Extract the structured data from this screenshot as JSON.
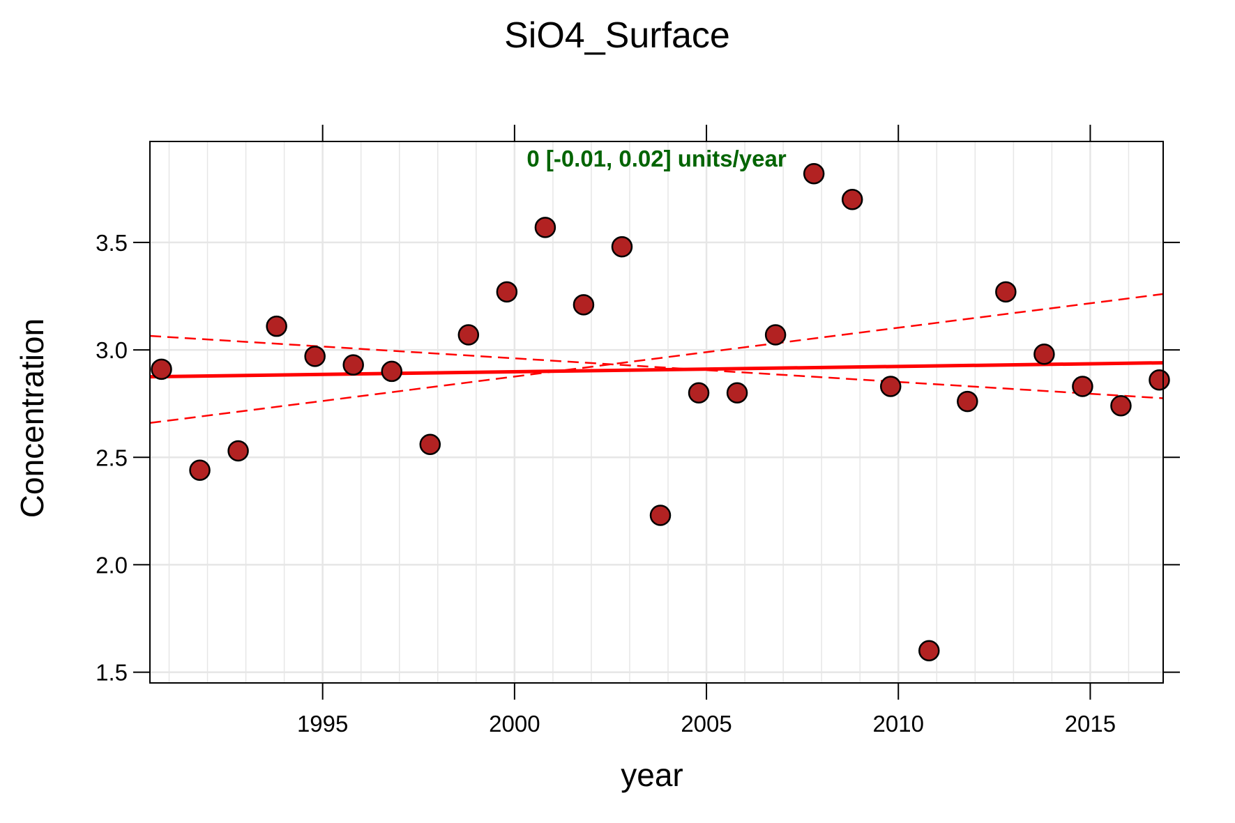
{
  "chart_data": {
    "type": "scatter",
    "title": "SiO4_Surface",
    "xlabel": "year",
    "ylabel": "Concentration",
    "xlim": [
      1990.5,
      2016.9
    ],
    "ylim": [
      1.45,
      3.97
    ],
    "x_ticks": [
      1995,
      2000,
      2005,
      2010,
      2015
    ],
    "y_ticks": [
      1.5,
      2.0,
      2.5,
      3.0,
      3.5
    ],
    "x_tick_labels": [
      "1995",
      "2000",
      "2005",
      "2010",
      "2015"
    ],
    "y_tick_labels": [
      "1.5",
      "2.0",
      "2.5",
      "3.0",
      "3.5"
    ],
    "grid": true,
    "annotation": "0 [-0.01, 0.02] units/year",
    "colors": {
      "points": "#b22222",
      "point_outline": "#000000",
      "trend": "#ff0000",
      "annotation": "#006400",
      "grid": "#e6e6e6"
    },
    "points": [
      {
        "x": 1990.8,
        "y": 2.91
      },
      {
        "x": 1991.8,
        "y": 2.44
      },
      {
        "x": 1992.8,
        "y": 2.53
      },
      {
        "x": 1993.8,
        "y": 3.11
      },
      {
        "x": 1994.8,
        "y": 2.97
      },
      {
        "x": 1995.8,
        "y": 2.93
      },
      {
        "x": 1996.8,
        "y": 2.9
      },
      {
        "x": 1997.8,
        "y": 2.56
      },
      {
        "x": 1998.8,
        "y": 3.07
      },
      {
        "x": 1999.8,
        "y": 3.27
      },
      {
        "x": 2000.8,
        "y": 3.57
      },
      {
        "x": 2001.8,
        "y": 3.21
      },
      {
        "x": 2002.8,
        "y": 3.48
      },
      {
        "x": 2003.8,
        "y": 2.23
      },
      {
        "x": 2004.8,
        "y": 2.8
      },
      {
        "x": 2005.8,
        "y": 2.8
      },
      {
        "x": 2006.8,
        "y": 3.07
      },
      {
        "x": 2007.8,
        "y": 3.82
      },
      {
        "x": 2008.8,
        "y": 3.7
      },
      {
        "x": 2009.8,
        "y": 2.83
      },
      {
        "x": 2010.8,
        "y": 1.6
      },
      {
        "x": 2011.8,
        "y": 2.76
      },
      {
        "x": 2012.8,
        "y": 3.27
      },
      {
        "x": 2013.8,
        "y": 2.98
      },
      {
        "x": 2014.8,
        "y": 2.83
      },
      {
        "x": 2015.8,
        "y": 2.74
      },
      {
        "x": 2016.8,
        "y": 2.86
      }
    ],
    "trend_line": {
      "x": [
        1990.5,
        2016.9
      ],
      "y": [
        2.875,
        2.94
      ]
    },
    "ci_lines": [
      {
        "x": [
          1990.5,
          2016.9
        ],
        "y": [
          3.065,
          2.775
        ]
      },
      {
        "x": [
          1990.5,
          2016.9
        ],
        "y": [
          2.66,
          3.26
        ]
      }
    ]
  }
}
